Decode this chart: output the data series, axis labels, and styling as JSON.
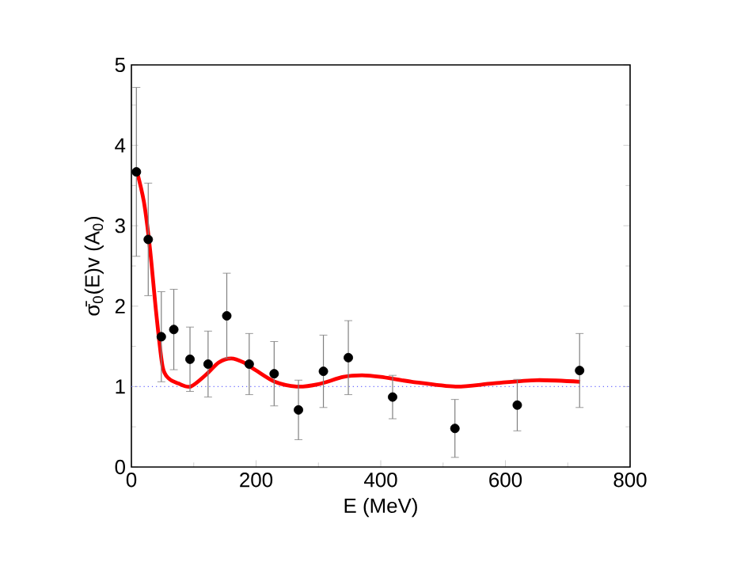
{
  "chart_data": {
    "type": "scatter",
    "xlabel": "E (MeV)",
    "ylabel": "σ̄$_{0}$(E)v  (A$_{0}$)",
    "xlim": [
      0,
      800
    ],
    "ylim": [
      0,
      5
    ],
    "xticks": [
      0,
      200,
      400,
      600,
      800
    ],
    "yticks": [
      0,
      1,
      2,
      3,
      4,
      5
    ],
    "grid": false,
    "ref_lines": [
      {
        "axis": "y",
        "value": 1,
        "color": "#6666ff",
        "line_style": "dotted"
      }
    ],
    "series": [
      {
        "color": "#000000",
        "marker": "circle",
        "x": [
          8,
          27,
          48,
          68,
          94,
          123,
          153,
          189,
          229,
          268,
          308,
          348,
          419,
          519,
          619,
          719
        ],
        "values": [
          3.67,
          2.83,
          1.62,
          1.71,
          1.34,
          1.28,
          1.88,
          1.28,
          1.16,
          0.71,
          1.19,
          1.36,
          0.87,
          0.48,
          0.77,
          1.2
        ],
        "errors": [
          1.05,
          0.7,
          0.56,
          0.5,
          0.4,
          0.41,
          0.53,
          0.38,
          0.4,
          0.37,
          0.45,
          0.46,
          0.27,
          0.36,
          0.32,
          0.46
        ]
      },
      {
        "type": "line",
        "color": "#ff0000",
        "marker": "none",
        "x": [
          8,
          20,
          30,
          40,
          50,
          60,
          75,
          95,
          120,
          140,
          160,
          180,
          200,
          230,
          265,
          300,
          340,
          370,
          400,
          450,
          520,
          580,
          650,
          720
        ],
        "values": [
          3.7,
          3.3,
          2.7,
          1.9,
          1.25,
          1.1,
          1.04,
          1.0,
          1.15,
          1.3,
          1.35,
          1.3,
          1.2,
          1.06,
          1.0,
          1.03,
          1.12,
          1.14,
          1.12,
          1.06,
          1.0,
          1.04,
          1.08,
          1.06
        ]
      }
    ]
  }
}
